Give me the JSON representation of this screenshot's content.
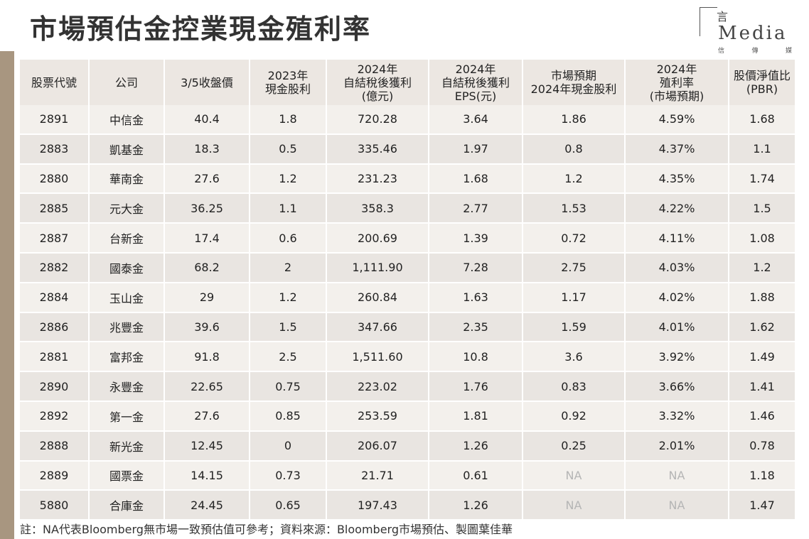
{
  "title": "市場預估金控業現金殖利率",
  "logo": {
    "glyph": "言",
    "text": "Media",
    "sub": [
      "信",
      "傳",
      "媒"
    ]
  },
  "headers": [
    [
      "股票代號"
    ],
    [
      "公司"
    ],
    [
      "3/5收盤價"
    ],
    [
      "2023年",
      "現金股利"
    ],
    [
      "2024年",
      "自結稅後獲利",
      "(億元)"
    ],
    [
      "2024年",
      "自結稅後獲利",
      "EPS(元)"
    ],
    [
      "市場預期",
      "2024年現金股利"
    ],
    [
      "2024年",
      "殖利率",
      "(市場預期)"
    ],
    [
      "股價淨值比",
      "(PBR)"
    ]
  ],
  "rows": [
    [
      "2891",
      "中信金",
      "40.4",
      "1.8",
      "720.28",
      "3.64",
      "1.86",
      "4.59%",
      "1.68"
    ],
    [
      "2883",
      "凱基金",
      "18.3",
      "0.5",
      "335.46",
      "1.97",
      "0.8",
      "4.37%",
      "1.1"
    ],
    [
      "2880",
      "華南金",
      "27.6",
      "1.2",
      "231.23",
      "1.68",
      "1.2",
      "4.35%",
      "1.74"
    ],
    [
      "2885",
      "元大金",
      "36.25",
      "1.1",
      "358.3",
      "2.77",
      "1.53",
      "4.22%",
      "1.5"
    ],
    [
      "2887",
      "台新金",
      "17.4",
      "0.6",
      "200.69",
      "1.39",
      "0.72",
      "4.11%",
      "1.08"
    ],
    [
      "2882",
      "國泰金",
      "68.2",
      "2",
      "1,111.90",
      "7.28",
      "2.75",
      "4.03%",
      "1.2"
    ],
    [
      "2884",
      "玉山金",
      "29",
      "1.2",
      "260.84",
      "1.63",
      "1.17",
      "4.02%",
      "1.88"
    ],
    [
      "2886",
      "兆豐金",
      "39.6",
      "1.5",
      "347.66",
      "2.35",
      "1.59",
      "4.01%",
      "1.62"
    ],
    [
      "2881",
      "富邦金",
      "91.8",
      "2.5",
      "1,511.60",
      "10.8",
      "3.6",
      "3.92%",
      "1.49"
    ],
    [
      "2890",
      "永豐金",
      "22.65",
      "0.75",
      "223.02",
      "1.76",
      "0.83",
      "3.66%",
      "1.41"
    ],
    [
      "2892",
      "第一金",
      "27.6",
      "0.85",
      "253.59",
      "1.81",
      "0.92",
      "3.32%",
      "1.46"
    ],
    [
      "2888",
      "新光金",
      "12.45",
      "0",
      "206.07",
      "1.26",
      "0.25",
      "2.01%",
      "0.78"
    ],
    [
      "2889",
      "國票金",
      "14.15",
      "0.73",
      "21.71",
      "0.61",
      "NA",
      "NA",
      "1.18"
    ],
    [
      "5880",
      "合庫金",
      "24.45",
      "0.65",
      "197.43",
      "1.26",
      "NA",
      "NA",
      "1.47"
    ]
  ],
  "footnote": "註：NA代表Bloomberg無市場一致預估值可參考；資料來源：Bloomberg市場預估、製圖葉佳華",
  "colors": {
    "header_bg": "#ece7e2",
    "row_odd": "#f3f0ec",
    "row_even": "#e9e5e1",
    "side_bar": "#a89680",
    "na_text": "#b5b5b5"
  }
}
